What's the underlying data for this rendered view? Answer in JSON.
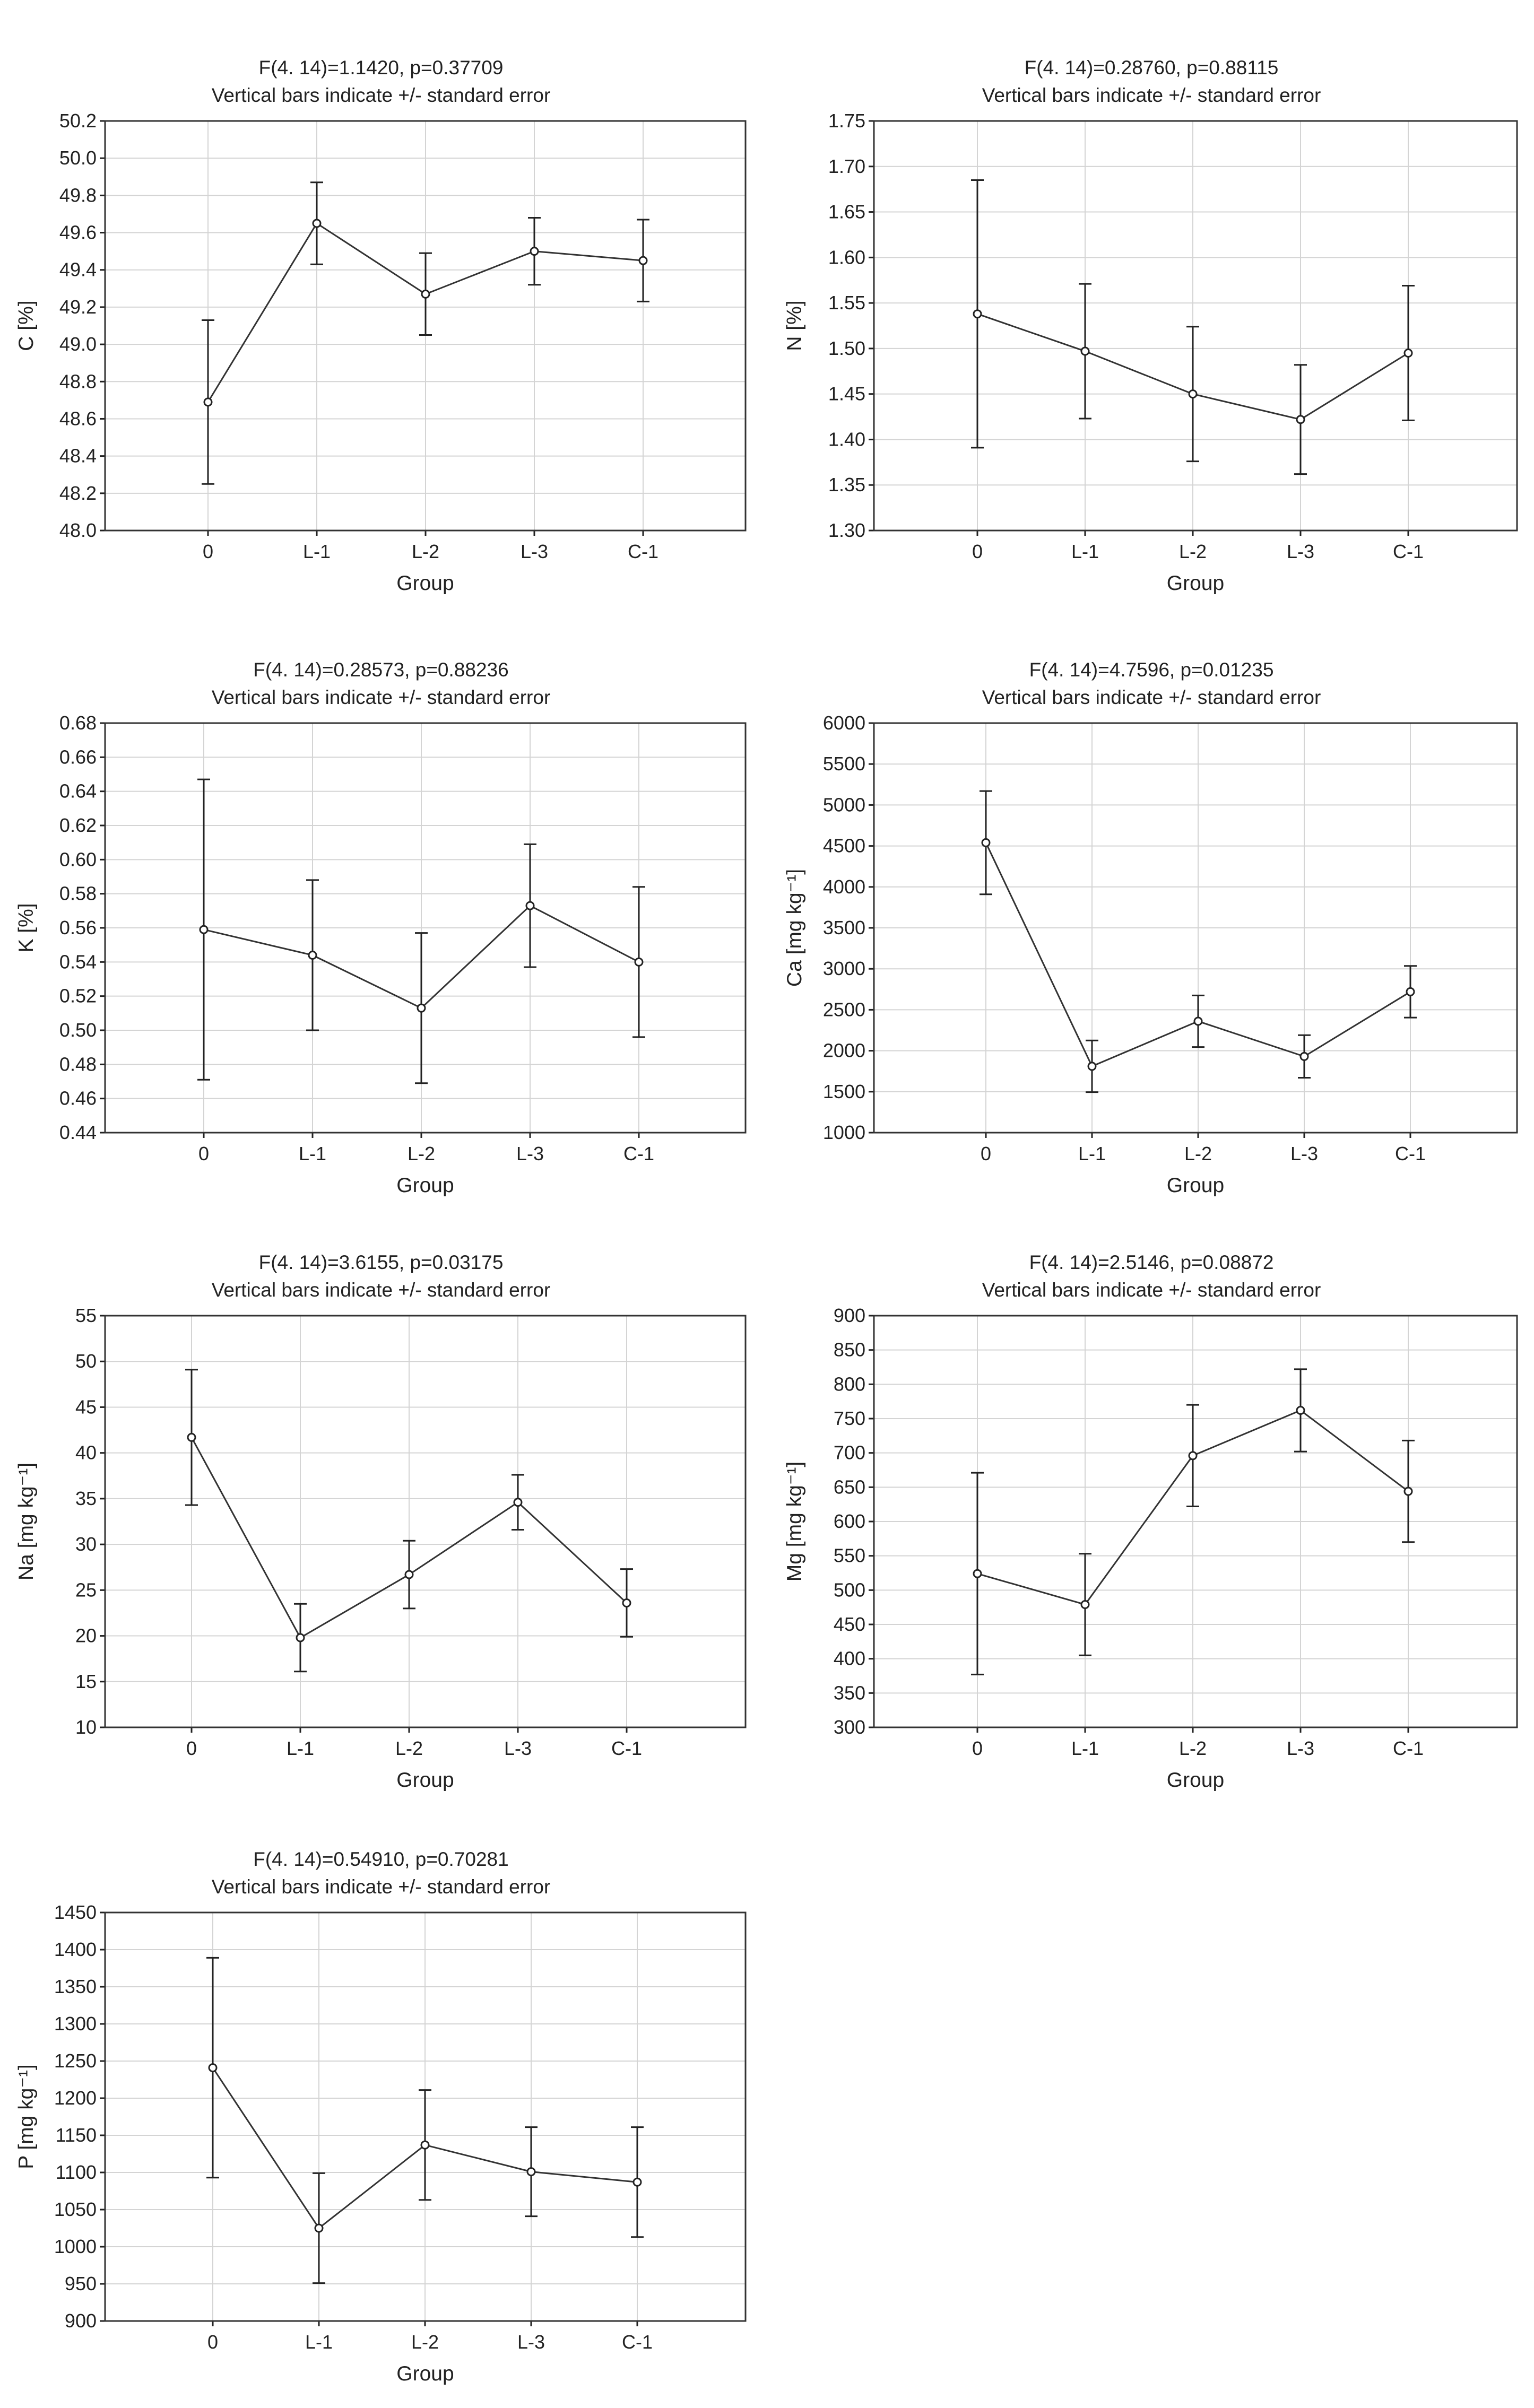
{
  "colors": {
    "line": "#333333",
    "grid": "#d4d4d4",
    "background": "#ffffff"
  },
  "chart_data": [
    {
      "type": "line",
      "title": "F(4. 14)=1.1420, p=0.37709",
      "subtitle": "Vertical bars indicate +/- standard error",
      "xlabel": "Group",
      "ylabel": "C [%]",
      "categories": [
        "0",
        "L-1",
        "L-2",
        "L-3",
        "C-1"
      ],
      "values": [
        48.69,
        49.65,
        49.27,
        49.5,
        49.45
      ],
      "errors": [
        0.44,
        0.22,
        0.22,
        0.18,
        0.22
      ],
      "ylim": [
        48.0,
        50.2
      ],
      "yticks": [
        "48.0",
        "48.2",
        "48.4",
        "48.6",
        "48.8",
        "49.0",
        "49.2",
        "49.4",
        "49.6",
        "49.8",
        "50.0",
        "50.2"
      ],
      "grid": true
    },
    {
      "type": "line",
      "title": "F(4. 14)=0.28760, p=0.88115",
      "subtitle": "Vertical bars indicate +/- standard error",
      "xlabel": "Group",
      "ylabel": "N [%]",
      "categories": [
        "0",
        "L-1",
        "L-2",
        "L-3",
        "C-1"
      ],
      "values": [
        1.538,
        1.497,
        1.45,
        1.422,
        1.495
      ],
      "errors": [
        0.147,
        0.074,
        0.074,
        0.06,
        0.074
      ],
      "ylim": [
        1.3,
        1.75
      ],
      "yticks": [
        "1.30",
        "1.35",
        "1.40",
        "1.45",
        "1.50",
        "1.55",
        "1.60",
        "1.65",
        "1.70",
        "1.75"
      ],
      "grid": true
    },
    {
      "type": "line",
      "title": "F(4. 14)=0.28573, p=0.88236",
      "subtitle": "Vertical bars indicate +/- standard error",
      "xlabel": "Group",
      "ylabel": "K [%]",
      "categories": [
        "0",
        "L-1",
        "L-2",
        "L-3",
        "C-1"
      ],
      "values": [
        0.559,
        0.544,
        0.513,
        0.573,
        0.54
      ],
      "errors": [
        0.088,
        0.044,
        0.044,
        0.036,
        0.044
      ],
      "ylim": [
        0.44,
        0.68
      ],
      "yticks": [
        "0.44",
        "0.46",
        "0.48",
        "0.50",
        "0.52",
        "0.54",
        "0.56",
        "0.58",
        "0.60",
        "0.62",
        "0.64",
        "0.66",
        "0.68"
      ],
      "grid": true
    },
    {
      "type": "line",
      "title": "F(4. 14)=4.7596, p=0.01235",
      "subtitle": "Vertical bars indicate +/- standard error",
      "xlabel": "Group",
      "ylabel": "Ca [mg kg⁻¹]",
      "categories": [
        "0",
        "L-1",
        "L-2",
        "L-3",
        "C-1"
      ],
      "values": [
        4540,
        1810,
        2360,
        1930,
        2720
      ],
      "errors": [
        630,
        315,
        315,
        260,
        315
      ],
      "ylim": [
        1000,
        6000
      ],
      "yticks": [
        "1000",
        "1500",
        "2000",
        "2500",
        "3000",
        "3500",
        "4000",
        "4500",
        "5000",
        "5500",
        "6000"
      ],
      "grid": true
    },
    {
      "type": "line",
      "title": "F(4. 14)=3.6155, p=0.03175",
      "subtitle": "Vertical bars indicate +/- standard error",
      "xlabel": "Group",
      "ylabel": "Na [mg kg⁻¹]",
      "categories": [
        "0",
        "L-1",
        "L-2",
        "L-3",
        "C-1"
      ],
      "values": [
        41.7,
        19.8,
        26.7,
        34.6,
        23.6
      ],
      "errors": [
        7.4,
        3.7,
        3.7,
        3.0,
        3.7
      ],
      "ylim": [
        10,
        55
      ],
      "yticks": [
        "10",
        "15",
        "20",
        "25",
        "30",
        "35",
        "40",
        "45",
        "50",
        "55"
      ],
      "grid": true
    },
    {
      "type": "line",
      "title": "F(4. 14)=2.5146, p=0.08872",
      "subtitle": "Vertical bars indicate +/- standard error",
      "xlabel": "Group",
      "ylabel": "Mg [mg kg⁻¹]",
      "categories": [
        "0",
        "L-1",
        "L-2",
        "L-3",
        "C-1"
      ],
      "values": [
        524,
        479,
        696,
        762,
        644
      ],
      "errors": [
        147,
        74,
        74,
        60,
        74
      ],
      "ylim": [
        300,
        900
      ],
      "yticks": [
        "300",
        "350",
        "400",
        "450",
        "500",
        "550",
        "600",
        "650",
        "700",
        "750",
        "800",
        "850",
        "900"
      ],
      "grid": true
    },
    {
      "type": "line",
      "title": "F(4. 14)=0.54910, p=0.70281",
      "subtitle": "Vertical bars indicate +/- standard error",
      "xlabel": "Group",
      "ylabel": "P [mg kg⁻¹]",
      "categories": [
        "0",
        "L-1",
        "L-2",
        "L-3",
        "C-1"
      ],
      "values": [
        1241,
        1025,
        1137,
        1101,
        1087
      ],
      "errors": [
        148,
        74,
        74,
        60,
        74
      ],
      "ylim": [
        900,
        1450
      ],
      "yticks": [
        "900",
        "950",
        "1000",
        "1050",
        "1100",
        "1150",
        "1200",
        "1250",
        "1300",
        "1350",
        "1400",
        "1450"
      ],
      "grid": true
    }
  ]
}
